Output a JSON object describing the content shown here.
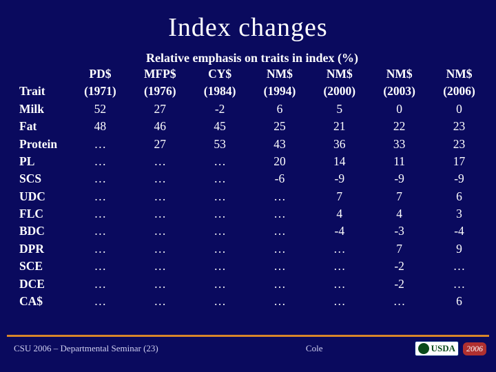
{
  "page": {
    "title": "Index changes",
    "subtitle": "Relative emphasis on traits in index (%)",
    "background_color": "#0a0a5e",
    "text_color": "#ffffff",
    "accent_color": "#d8862a",
    "title_font": "Comic Sans MS",
    "title_fontsize": 38,
    "subtitle_fontsize": 18,
    "body_fontsize": 17.5
  },
  "table": {
    "trait_header": "Trait",
    "columns": [
      {
        "label": "PD$",
        "year": "(1971)"
      },
      {
        "label": "MFP$",
        "year": "(1976)"
      },
      {
        "label": "CY$",
        "year": "(1984)"
      },
      {
        "label": "NM$",
        "year": "(1994)"
      },
      {
        "label": "NM$",
        "year": "(2000)"
      },
      {
        "label": "NM$",
        "year": "(2003)"
      },
      {
        "label": "NM$",
        "year": "(2006)"
      }
    ],
    "rows": [
      {
        "trait": "Milk",
        "v": [
          "52",
          "27",
          "-2",
          "6",
          "5",
          "0",
          "0"
        ]
      },
      {
        "trait": "Fat",
        "v": [
          "48",
          "46",
          "45",
          "25",
          "21",
          "22",
          "23"
        ]
      },
      {
        "trait": "Protein",
        "v": [
          "…",
          "27",
          "53",
          "43",
          "36",
          "33",
          "23"
        ]
      },
      {
        "trait": "PL",
        "v": [
          "…",
          "…",
          "…",
          "20",
          "14",
          "11",
          "17"
        ]
      },
      {
        "trait": "SCS",
        "v": [
          "…",
          "…",
          "…",
          "-6",
          "-9",
          "-9",
          "-9"
        ]
      },
      {
        "trait": "UDC",
        "v": [
          "…",
          "…",
          "…",
          "…",
          "7",
          "7",
          "6"
        ]
      },
      {
        "trait": "FLC",
        "v": [
          "…",
          "…",
          "…",
          "…",
          "4",
          "4",
          "3"
        ]
      },
      {
        "trait": "BDC",
        "v": [
          "…",
          "…",
          "…",
          "…",
          "-4",
          "-3",
          "-4"
        ]
      },
      {
        "trait": "DPR",
        "v": [
          "…",
          "…",
          "…",
          "…",
          "…",
          "7",
          "9"
        ]
      },
      {
        "trait": "SCE",
        "v": [
          "…",
          "…",
          "…",
          "…",
          "…",
          "-2",
          "…"
        ]
      },
      {
        "trait": "DCE",
        "v": [
          "…",
          "…",
          "…",
          "…",
          "…",
          "-2",
          "…"
        ]
      },
      {
        "trait": "CA$",
        "v": [
          "…",
          "…",
          "…",
          "…",
          "…",
          "…",
          "6"
        ]
      }
    ]
  },
  "footer": {
    "left": "CSU 2006 – Departmental Seminar (23)",
    "center": "Cole",
    "logo_text": "USDA",
    "year_badge": "2006"
  }
}
